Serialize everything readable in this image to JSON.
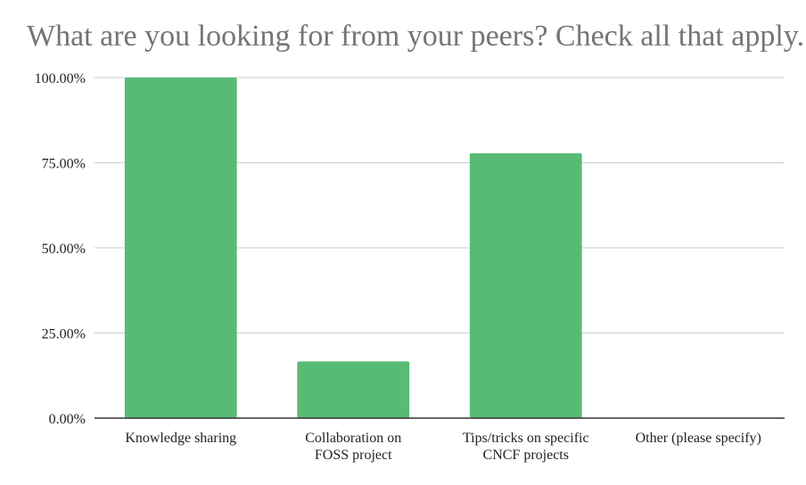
{
  "chart_data": {
    "type": "bar",
    "title": "What are you looking for from your peers? Check all that apply.",
    "categories": [
      [
        "Knowledge sharing"
      ],
      [
        "Collaboration on",
        "FOSS project"
      ],
      [
        "Tips/tricks on specific",
        "CNCF projects"
      ],
      [
        "Other (please specify)"
      ]
    ],
    "values": [
      100,
      16.67,
      77.78,
      0
    ],
    "ylim": [
      0,
      100
    ],
    "yticks": [
      0,
      25,
      50,
      75,
      100
    ],
    "ytick_labels": [
      "0.00%",
      "25.00%",
      "50.00%",
      "75.00%",
      "100.00%"
    ],
    "grid": true,
    "bar_color": "#57bb76",
    "grid_color": "#cccccc",
    "axis_color": "#333333"
  }
}
